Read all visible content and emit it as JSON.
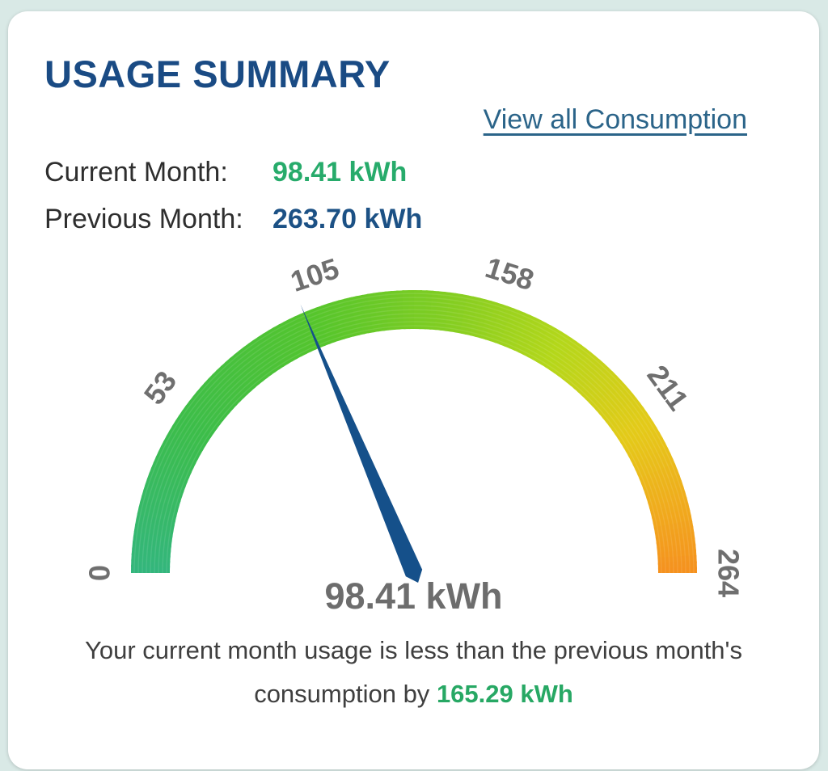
{
  "header": {
    "title": "USAGE SUMMARY"
  },
  "link": {
    "label": "View all Consumption"
  },
  "stats": {
    "current_label": "Current Month:",
    "current_value": "98.41 kWh",
    "previous_label": "Previous Month:",
    "previous_value": "263.70 kWh"
  },
  "footer": {
    "text_before": "Your current month usage is less than the previous month's consumption by",
    "highlight": "165.29 kWh"
  },
  "colors": {
    "page_background": "#d9e9e6",
    "card_background": "#ffffff",
    "title": "#1a4b84",
    "link": "#2b6489",
    "current_value": "#27ab6b",
    "previous_value": "#1c5185",
    "gauge_value_text": "#6d6d6d",
    "footer_highlight": "#27a864"
  },
  "chart_data": {
    "type": "gauge",
    "min": 0,
    "max": 264,
    "value": 98.41,
    "value_label": "98.41 kWh",
    "tick_labels": [
      0,
      53,
      105,
      158,
      211,
      264
    ],
    "start_angle_deg": 180,
    "end_angle_deg": 0,
    "band_color_stops": [
      {
        "t": 0.0,
        "color": "#33b67d"
      },
      {
        "t": 0.18,
        "color": "#3cbd4a"
      },
      {
        "t": 0.38,
        "color": "#55c52c"
      },
      {
        "t": 0.55,
        "color": "#86ce21"
      },
      {
        "t": 0.68,
        "color": "#b4d71a"
      },
      {
        "t": 0.82,
        "color": "#e4ca19"
      },
      {
        "t": 0.92,
        "color": "#f0ab1d"
      },
      {
        "t": 1.0,
        "color": "#f5911f"
      }
    ],
    "needle_color": "#15508a",
    "tick_label_color": "#6f6f6f"
  }
}
